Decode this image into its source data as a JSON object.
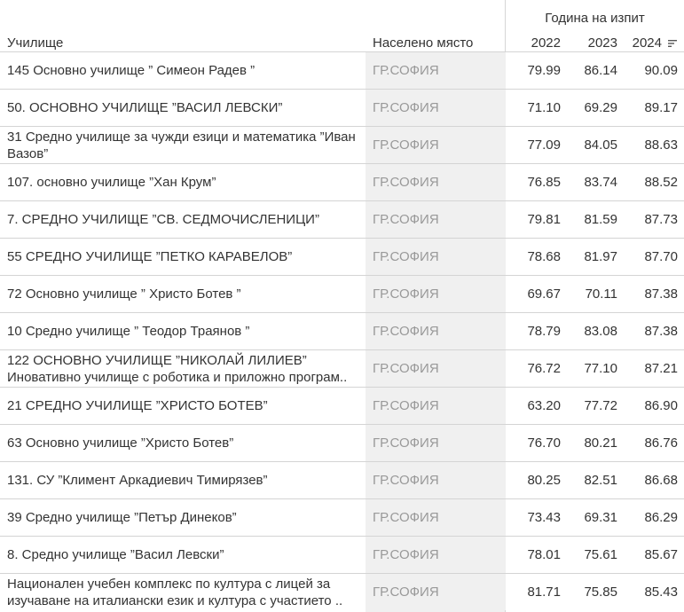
{
  "header": {
    "group_title": "Година на изпит",
    "col_school": "Училище",
    "col_place": "Населено място",
    "years": [
      "2022",
      "2023",
      "2024"
    ],
    "sort_icon": "sort-descending-icon"
  },
  "rows": [
    {
      "school": "145 Основно училище ” Симеон Радев ”",
      "place": "ГР.СОФИЯ",
      "v2022": "79.99",
      "v2023": "86.14",
      "v2024": "90.09"
    },
    {
      "school": "50. ОСНОВНО УЧИЛИЩЕ ”ВАСИЛ ЛЕВСКИ”",
      "place": "ГР.СОФИЯ",
      "v2022": "71.10",
      "v2023": "69.29",
      "v2024": "89.17"
    },
    {
      "school": "31 Средно училище за чужди езици и математика ”Иван Вазов”",
      "place": "ГР.СОФИЯ",
      "v2022": "77.09",
      "v2023": "84.05",
      "v2024": "88.63"
    },
    {
      "school": "107. основно училище ”Хан Крум”",
      "place": "ГР.СОФИЯ",
      "v2022": "76.85",
      "v2023": "83.74",
      "v2024": "88.52"
    },
    {
      "school": "7. СРЕДНО УЧИЛИЩЕ ”СВ. СЕДМОЧИСЛЕНИЦИ”",
      "place": "ГР.СОФИЯ",
      "v2022": "79.81",
      "v2023": "81.59",
      "v2024": "87.73"
    },
    {
      "school": "55 СРЕДНО УЧИЛИЩЕ ”ПЕТКО КАРАВЕЛОВ”",
      "place": "ГР.СОФИЯ",
      "v2022": "78.68",
      "v2023": "81.97",
      "v2024": "87.70"
    },
    {
      "school": "72 Основно училище ” Христо Ботев ”",
      "place": "ГР.СОФИЯ",
      "v2022": "69.67",
      "v2023": "70.11",
      "v2024": "87.38"
    },
    {
      "school": "10 Средно училище ” Теодор Траянов ”",
      "place": "ГР.СОФИЯ",
      "v2022": "78.79",
      "v2023": "83.08",
      "v2024": "87.38"
    },
    {
      "school": "122 ОСНОВНО УЧИЛИЩЕ ”НИКОЛАЙ ЛИЛИЕВ” Иновативно училище с роботика и приложно програм..",
      "place": "ГР.СОФИЯ",
      "v2022": "76.72",
      "v2023": "77.10",
      "v2024": "87.21"
    },
    {
      "school": "21 СРЕДНО УЧИЛИЩЕ ”ХРИСТО БОТЕВ”",
      "place": "ГР.СОФИЯ",
      "v2022": "63.20",
      "v2023": "77.72",
      "v2024": "86.90"
    },
    {
      "school": "63 Основно училище ”Христо Ботев”",
      "place": "ГР.СОФИЯ",
      "v2022": "76.70",
      "v2023": "80.21",
      "v2024": "86.76"
    },
    {
      "school": "131. СУ ”Климент Аркадиевич Тимирязев”",
      "place": "ГР.СОФИЯ",
      "v2022": "80.25",
      "v2023": "82.51",
      "v2024": "86.68"
    },
    {
      "school": "39 Средно училище ”Петър Динеков”",
      "place": "ГР.СОФИЯ",
      "v2022": "73.43",
      "v2023": "69.31",
      "v2024": "86.29"
    },
    {
      "school": "8. Средно училище ”Васил Левски”",
      "place": "ГР.СОФИЯ",
      "v2022": "78.01",
      "v2023": "75.61",
      "v2024": "85.67"
    },
    {
      "school": "Национален учебен комплекс по култура с лицей за изучаване на италиански език и култура с участието ..",
      "place": "ГР.СОФИЯ",
      "v2022": "81.71",
      "v2023": "75.85",
      "v2024": "85.43"
    }
  ]
}
